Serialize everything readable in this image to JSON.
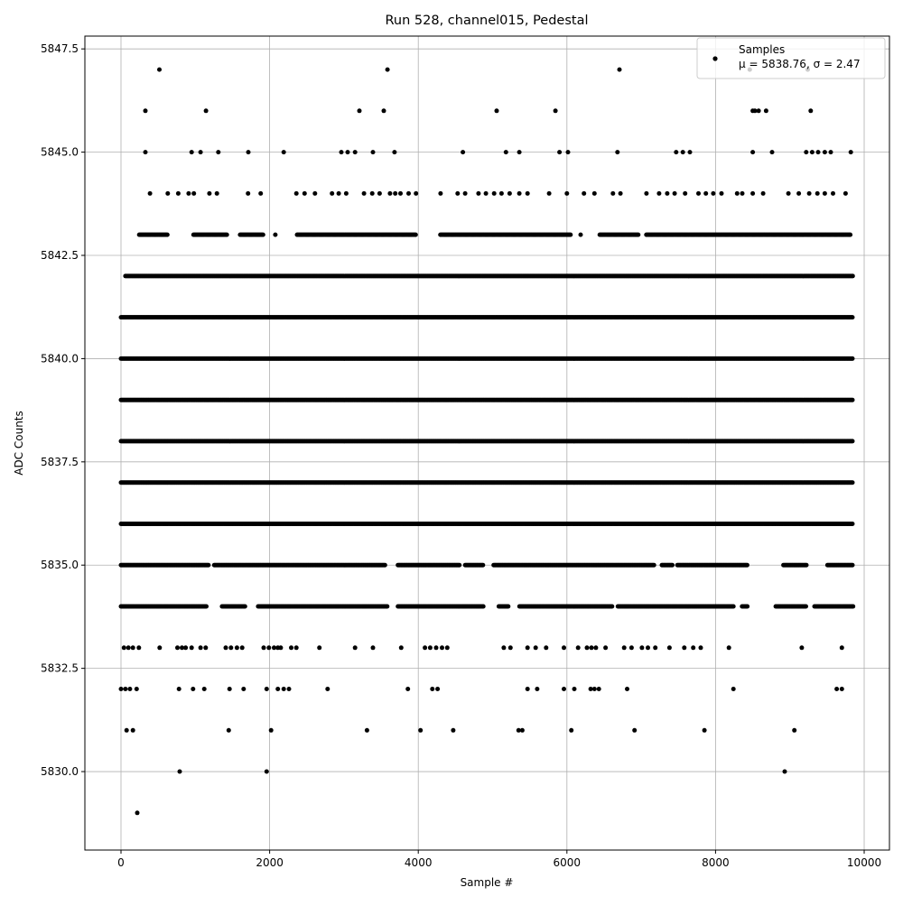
{
  "chart_data": {
    "type": "scatter",
    "title": "Run 528, channel015, Pedestal",
    "xlabel": "Sample #",
    "ylabel": "ADC Counts",
    "xlim": [
      -486,
      10340
    ],
    "ylim": [
      5828.1,
      5847.81
    ],
    "xticks": [
      0,
      2000,
      4000,
      6000,
      8000,
      10000
    ],
    "xtick_labels": [
      "0",
      "2000",
      "4000",
      "6000",
      "8000",
      "10000"
    ],
    "yticks": [
      5830.0,
      5832.5,
      5835.0,
      5837.5,
      5840.0,
      5842.5,
      5845.0,
      5847.5
    ],
    "ytick_labels": [
      "5830.0",
      "5832.5",
      "5835.0",
      "5837.5",
      "5840.0",
      "5842.5",
      "5845.0",
      "5847.5"
    ],
    "grid": true,
    "legend": {
      "placement": "upper-right",
      "entries": [
        "Samples"
      ],
      "stats_text": "μ = 5838.76, σ = 2.47"
    },
    "marker_color": "#000000",
    "series": [
      {
        "name": "Samples",
        "sparse_points": [
          {
            "y": 5847,
            "x": [
              516,
              3585,
              6707,
              8460,
              9240
            ]
          },
          {
            "y": 5846,
            "x": [
              328,
              1143,
              3208,
              3536,
              5055,
              5845,
              8500,
              8530,
              8580,
              8680,
              9280
            ]
          },
          {
            "y": 5845,
            "x": [
              328,
              950,
              1070,
              1310,
              1713,
              2190,
              2965,
              3050,
              3150,
              3390,
              3680,
              4600,
              5180,
              5360,
              5900,
              6015,
              6680,
              7470,
              7560,
              7655,
              8500,
              8760,
              9220,
              9300,
              9380,
              9470,
              9550,
              9820
            ]
          },
          {
            "y": 5844,
            "x": [
              390,
              630,
              770,
              910,
              980,
              1190,
              1290,
              1710,
              1880,
              2360,
              2470,
              2610,
              2840,
              2930,
              3030,
              3270,
              3380,
              3480,
              3620,
              3690,
              3760,
              3870,
              3970,
              4300,
              4530,
              4630,
              4810,
              4910,
              5020,
              5120,
              5230,
              5360,
              5470,
              5760,
              6000,
              6230,
              6370,
              6620,
              6720,
              7070,
              7240,
              7350,
              7450,
              7590,
              7770,
              7870,
              7970,
              8080,
              8290,
              8360,
              8500,
              8640,
              8980,
              9120,
              9260,
              9370,
              9470,
              9580,
              9750
            ]
          },
          {
            "y": 5833,
            "x": [
              40,
              100,
              160,
              240,
              520,
              760,
              820,
              870,
              950,
              1070,
              1140,
              1410,
              1480,
              1560,
              1630,
              1920,
              1990,
              2060,
              2110,
              2150,
              2290,
              2360,
              2670,
              3150,
              3390,
              3770,
              4090,
              4160,
              4240,
              4320,
              4390,
              5150,
              5240,
              5470,
              5580,
              5720,
              5960,
              6150,
              6270,
              6330,
              6390,
              6520,
              6770,
              6870,
              7010,
              7090,
              7190,
              7380,
              7580,
              7700,
              7800,
              8180,
              9160,
              9700
            ]
          },
          {
            "y": 5832,
            "x": [
              0,
              60,
              120,
              210,
              780,
              970,
              1120,
              1460,
              1650,
              1960,
              2110,
              2190,
              2260,
              2780,
              3860,
              4190,
              4260,
              5470,
              5600,
              5960,
              6100,
              6320,
              6370,
              6430,
              6810,
              8240,
              9630,
              9700
            ]
          },
          {
            "y": 5831,
            "x": [
              75,
              160,
              1450,
              2020,
              3310,
              4030,
              4470,
              5350,
              5400,
              6060,
              6910,
              7850,
              9060
            ]
          },
          {
            "y": 5830,
            "x": [
              790,
              1960,
              8930
            ]
          },
          {
            "y": 5829,
            "x": [
              219
            ]
          }
        ],
        "dense_levels": [
          {
            "y": 5843,
            "x_ranges": [
              [
                245,
                628
              ],
              [
                976,
                1429
              ],
              [
                1603,
                1916
              ],
              [
                2076,
                2076
              ],
              [
                2369,
                3971
              ],
              [
                4298,
                6059
              ],
              [
                6184,
                6184
              ],
              [
                6442,
                6964
              ],
              [
                7069,
                9820
              ]
            ]
          },
          {
            "y": 5842,
            "x_ranges": [
              [
                60,
                9850
              ]
            ]
          },
          {
            "y": 5841,
            "x_ranges": [
              [
                0,
                9850
              ]
            ]
          },
          {
            "y": 5840,
            "x_ranges": [
              [
                0,
                9850
              ]
            ]
          },
          {
            "y": 5839,
            "x_ranges": [
              [
                0,
                9850
              ]
            ]
          },
          {
            "y": 5838,
            "x_ranges": [
              [
                0,
                9850
              ]
            ]
          },
          {
            "y": 5837,
            "x_ranges": [
              [
                0,
                9850
              ]
            ]
          },
          {
            "y": 5836,
            "x_ranges": [
              [
                0,
                9850
              ]
            ]
          },
          {
            "y": 5835,
            "x_ranges": [
              [
                0,
                1185
              ],
              [
                1255,
                3553
              ],
              [
                3727,
                4563
              ],
              [
                4632,
                4876
              ],
              [
                5015,
                7174
              ],
              [
                7278,
                7418
              ],
              [
                7487,
                8427
              ],
              [
                8914,
                9228
              ],
              [
                9506,
                9854
              ]
            ]
          },
          {
            "y": 5834,
            "x_ranges": [
              [
                0,
                1150
              ],
              [
                1360,
                1672
              ],
              [
                1846,
                3588
              ],
              [
                3727,
                4876
              ],
              [
                5084,
                5223
              ],
              [
                5362,
                6616
              ],
              [
                6686,
                8252
              ],
              [
                8357,
                8427
              ],
              [
                8810,
                9228
              ],
              [
                9332,
                9854
              ]
            ]
          }
        ]
      }
    ]
  }
}
